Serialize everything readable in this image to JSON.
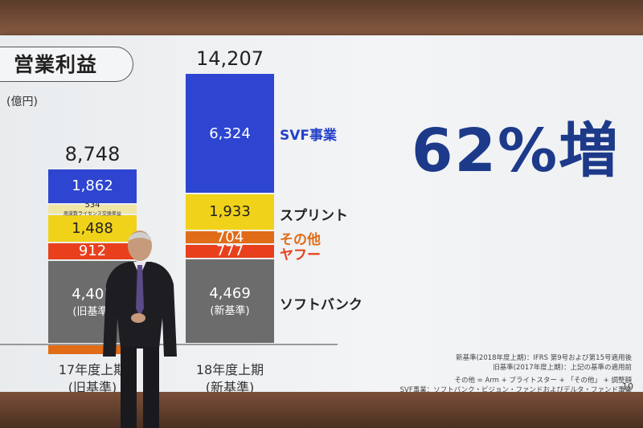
{
  "slide": {
    "title": "営業利益",
    "unit": "(億円)",
    "headline": "62%増",
    "page_number": "10",
    "notes": [
      "新基準(2018年度上期)：IFRS 第9号および第15号適用後",
      "旧基準(2017年度上期)：上記の基準の適用前",
      "その他 = Arm + ブライトスター + 「その他」 + 調整額",
      "SVF事業：ソフトバンク・ビジョン・ファンドおよびデルタ・ファンド事業"
    ]
  },
  "chart_data": {
    "type": "bar",
    "stacked": true,
    "title": "営業利益",
    "ylabel": "(億円)",
    "categories": [
      "17年度上期 (旧基準)",
      "18年度上期 (新基準)"
    ],
    "totals": [
      8748,
      14207
    ],
    "total_labels": [
      "8,748",
      "14,207"
    ],
    "series": [
      {
        "name": "ソフトバンク",
        "values": [
          4401,
          4469
        ],
        "color": "#6c6c6c",
        "labels": [
          "4,401",
          "4,469"
        ],
        "sublabels": [
          "(旧基準)",
          "(新基準)"
        ]
      },
      {
        "name": "ヤフー",
        "values": [
          912,
          777
        ],
        "color": "#e8401c",
        "labels": [
          "912",
          "777"
        ]
      },
      {
        "name": "その他",
        "values": [
          -449,
          704
        ],
        "color": "#e06c18",
        "labels": [
          "",
          "704"
        ]
      },
      {
        "name": "スプリント",
        "values": [
          1488,
          1933
        ],
        "color": "#f0d21a",
        "labels": [
          "1,488",
          "1,933"
        ]
      },
      {
        "name": "周波数ライセンス交換差益",
        "values": [
          534,
          0
        ],
        "color": "#efe6a6",
        "labels": [
          "534",
          ""
        ],
        "sublabel": "周波数ライセンス交換差益"
      },
      {
        "name": "SVF事業",
        "values": [
          1862,
          6324
        ],
        "color": "#2d45d0",
        "labels": [
          "1,862",
          "6,324"
        ]
      }
    ],
    "legend_labels": [
      {
        "text": "SVF事業",
        "color": "#2540c8"
      },
      {
        "text": "スプリント",
        "color": "#222222"
      },
      {
        "text": "その他",
        "color": "#e06c18"
      },
      {
        "text": "ヤフー",
        "color": "#e8401c"
      },
      {
        "text": "ソフトバンク",
        "color": "#222222"
      }
    ],
    "period_labels": [
      {
        "line1": "17年度上期",
        "line2": "(旧基準)"
      },
      {
        "line1": "18年度上期",
        "line2": "(新基準)"
      }
    ]
  }
}
